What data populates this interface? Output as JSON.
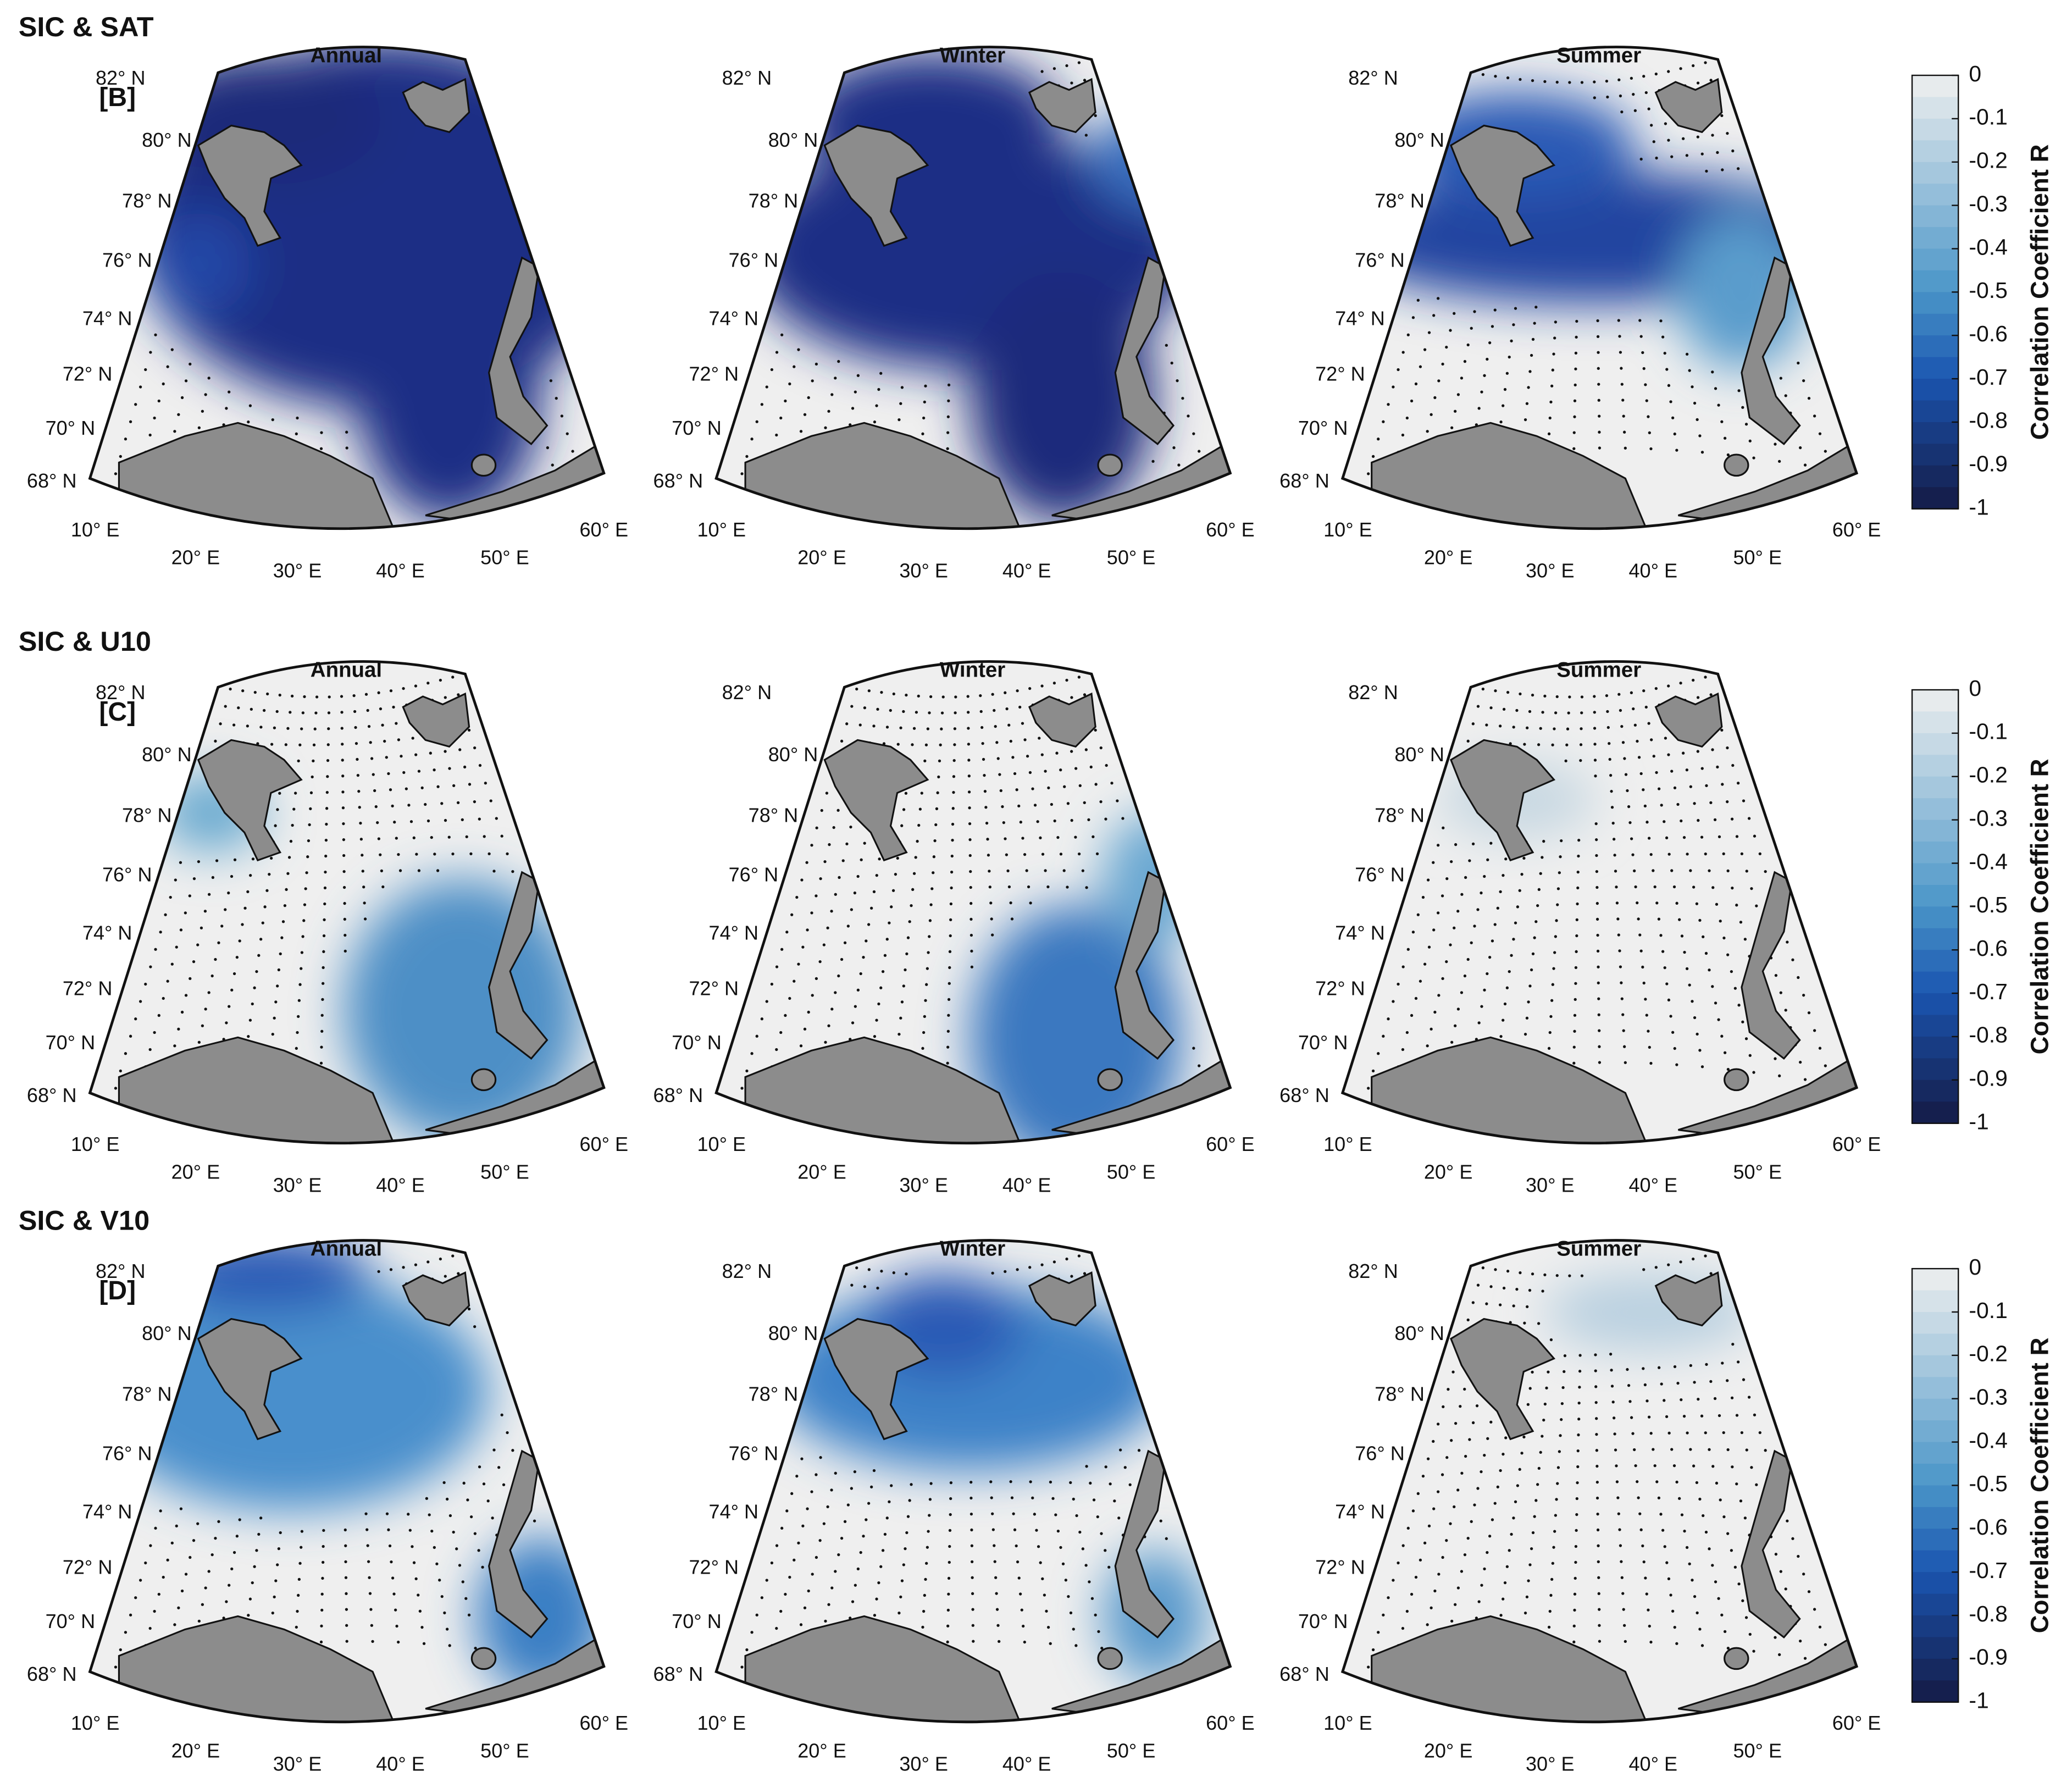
{
  "rows": [
    {
      "title": "SIC & SAT",
      "tag": "[B]",
      "panels": [
        "Annual",
        "Winter",
        "Summer"
      ]
    },
    {
      "title": "SIC & U10",
      "tag": "[C]",
      "panels": [
        "Annual",
        "Winter",
        "Summer"
      ]
    },
    {
      "title": "SIC & V10",
      "tag": "[D]",
      "panels": [
        "Annual",
        "Winter",
        "Summer"
      ]
    }
  ],
  "lat_labels": [
    "68° N",
    "70° N",
    "72° N",
    "74° N",
    "76° N",
    "78° N",
    "80° N",
    "82° N"
  ],
  "lon_labels": [
    "10° E",
    "20° E",
    "30° E",
    "40° E",
    "50° E",
    "60° E"
  ],
  "colorbar": {
    "label": "Correlation Coefficient R",
    "ticks": [
      0,
      -0.1,
      -0.2,
      -0.3,
      -0.4,
      -0.5,
      -0.6,
      -0.7,
      -0.8,
      -0.9,
      -1
    ]
  }
}
